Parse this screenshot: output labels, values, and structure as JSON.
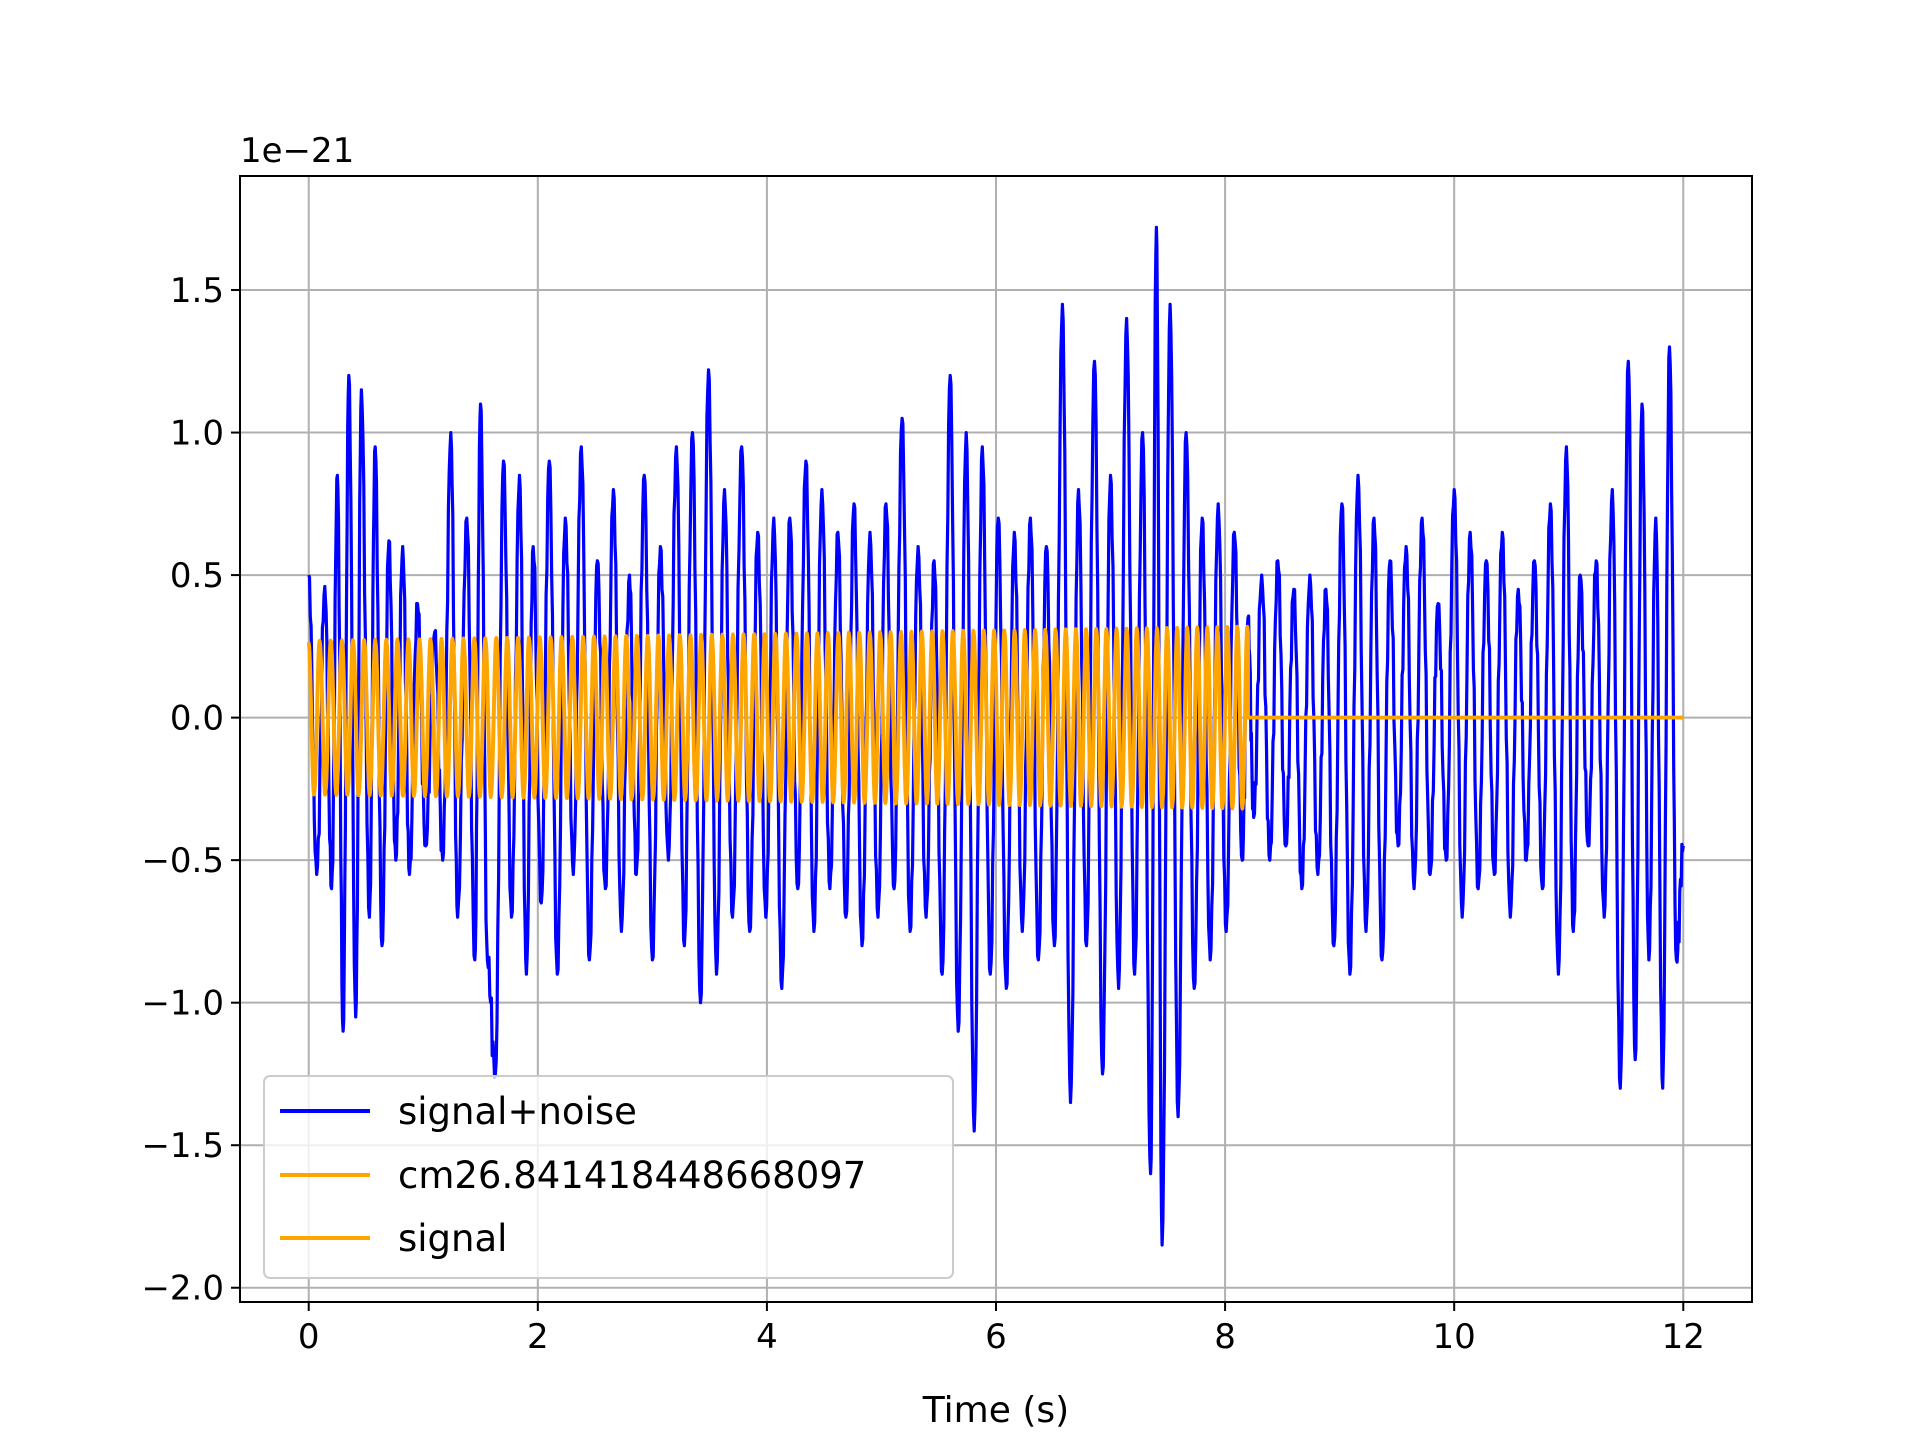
{
  "chart_data": {
    "type": "line",
    "title": "",
    "xlabel": "Time (s)",
    "ylabel": "",
    "offset_text": "1e−21",
    "xlim": [
      -0.6,
      12.6
    ],
    "ylim": [
      -2.05,
      1.9
    ],
    "x_ticks": [
      0,
      2,
      4,
      6,
      8,
      10,
      12
    ],
    "x_tick_labels": [
      "0",
      "2",
      "4",
      "6",
      "8",
      "10",
      "12"
    ],
    "y_ticks": [
      -2.0,
      -1.5,
      -1.0,
      -0.5,
      0.0,
      0.5,
      1.0,
      1.5
    ],
    "y_tick_labels": [
      "−2.0",
      "−1.5",
      "−1.0",
      "−0.5",
      "0.0",
      "0.5",
      "1.0",
      "1.5"
    ],
    "grid": true,
    "legend_position": "lower-left",
    "legend": [
      "signal+noise",
      "cm26.841418448668097",
      "signal"
    ],
    "series": [
      {
        "name": "signal+noise",
        "color": "#0000ff",
        "x_range": [
          0,
          12
        ],
        "peaks": [
          [
            0.0,
            0.5
          ],
          [
            0.07,
            -0.55
          ],
          [
            0.14,
            0.46
          ],
          [
            0.2,
            -0.6
          ],
          [
            0.25,
            0.85
          ],
          [
            0.3,
            -1.1
          ],
          [
            0.35,
            1.2
          ],
          [
            0.41,
            -1.05
          ],
          [
            0.46,
            1.15
          ],
          [
            0.53,
            -0.7
          ],
          [
            0.58,
            0.95
          ],
          [
            0.64,
            -0.8
          ],
          [
            0.7,
            0.62
          ],
          [
            0.76,
            -0.5
          ],
          [
            0.82,
            0.6
          ],
          [
            0.88,
            -0.55
          ],
          [
            0.95,
            0.4
          ],
          [
            1.02,
            -0.45
          ],
          [
            1.1,
            0.3
          ],
          [
            1.17,
            -0.5
          ],
          [
            1.24,
            1.0
          ],
          [
            1.3,
            -0.7
          ],
          [
            1.38,
            0.7
          ],
          [
            1.45,
            -0.85
          ],
          [
            1.5,
            1.1
          ],
          [
            1.56,
            -0.85
          ],
          [
            1.63,
            -1.25
          ],
          [
            1.7,
            0.9
          ],
          [
            1.77,
            -0.7
          ],
          [
            1.84,
            0.85
          ],
          [
            1.9,
            -0.9
          ],
          [
            1.96,
            0.6
          ],
          [
            2.03,
            -0.65
          ],
          [
            2.1,
            0.9
          ],
          [
            2.17,
            -0.9
          ],
          [
            2.24,
            0.7
          ],
          [
            2.31,
            -0.55
          ],
          [
            2.38,
            0.95
          ],
          [
            2.45,
            -0.85
          ],
          [
            2.52,
            0.55
          ],
          [
            2.59,
            -0.6
          ],
          [
            2.66,
            0.8
          ],
          [
            2.73,
            -0.75
          ],
          [
            2.8,
            0.5
          ],
          [
            2.86,
            -0.55
          ],
          [
            2.93,
            0.85
          ],
          [
            3.0,
            -0.85
          ],
          [
            3.07,
            0.6
          ],
          [
            3.14,
            -0.5
          ],
          [
            3.21,
            0.95
          ],
          [
            3.28,
            -0.8
          ],
          [
            3.35,
            1.0
          ],
          [
            3.42,
            -1.0
          ],
          [
            3.49,
            1.22
          ],
          [
            3.56,
            -0.9
          ],
          [
            3.63,
            0.8
          ],
          [
            3.7,
            -0.7
          ],
          [
            3.78,
            0.95
          ],
          [
            3.85,
            -0.75
          ],
          [
            3.92,
            0.65
          ],
          [
            3.99,
            -0.7
          ],
          [
            4.06,
            0.7
          ],
          [
            4.13,
            -0.95
          ],
          [
            4.2,
            0.7
          ],
          [
            4.27,
            -0.6
          ],
          [
            4.34,
            0.9
          ],
          [
            4.41,
            -0.75
          ],
          [
            4.48,
            0.8
          ],
          [
            4.55,
            -0.6
          ],
          [
            4.62,
            0.65
          ],
          [
            4.69,
            -0.7
          ],
          [
            4.76,
            0.75
          ],
          [
            4.83,
            -0.8
          ],
          [
            4.9,
            0.65
          ],
          [
            4.97,
            -0.7
          ],
          [
            5.04,
            0.75
          ],
          [
            5.11,
            -0.6
          ],
          [
            5.18,
            1.05
          ],
          [
            5.25,
            -0.75
          ],
          [
            5.32,
            0.6
          ],
          [
            5.39,
            -0.7
          ],
          [
            5.46,
            0.55
          ],
          [
            5.53,
            -0.9
          ],
          [
            5.6,
            1.2
          ],
          [
            5.67,
            -1.1
          ],
          [
            5.74,
            1.0
          ],
          [
            5.81,
            -1.45
          ],
          [
            5.88,
            0.95
          ],
          [
            5.95,
            -0.9
          ],
          [
            6.02,
            0.7
          ],
          [
            6.09,
            -0.95
          ],
          [
            6.16,
            0.65
          ],
          [
            6.23,
            -0.75
          ],
          [
            6.3,
            0.7
          ],
          [
            6.37,
            -0.85
          ],
          [
            6.44,
            0.6
          ],
          [
            6.51,
            -0.8
          ],
          [
            6.58,
            1.45
          ],
          [
            6.65,
            -1.35
          ],
          [
            6.72,
            0.8
          ],
          [
            6.79,
            -0.8
          ],
          [
            6.86,
            1.25
          ],
          [
            6.93,
            -1.25
          ],
          [
            7.0,
            0.85
          ],
          [
            7.07,
            -0.95
          ],
          [
            7.14,
            1.4
          ],
          [
            7.21,
            -0.9
          ],
          [
            7.28,
            1.0
          ],
          [
            7.35,
            -1.6
          ],
          [
            7.4,
            1.72
          ],
          [
            7.45,
            -1.85
          ],
          [
            7.52,
            1.45
          ],
          [
            7.59,
            -1.4
          ],
          [
            7.66,
            1.0
          ],
          [
            7.73,
            -0.95
          ],
          [
            7.8,
            0.7
          ],
          [
            7.87,
            -0.85
          ],
          [
            7.94,
            0.75
          ],
          [
            8.01,
            -0.75
          ],
          [
            8.08,
            0.65
          ],
          [
            8.15,
            -0.5
          ],
          [
            8.2,
            0.35
          ],
          [
            8.25,
            -0.35
          ],
          [
            8.32,
            0.5
          ],
          [
            8.39,
            -0.5
          ],
          [
            8.46,
            0.55
          ],
          [
            8.53,
            -0.45
          ],
          [
            8.6,
            0.45
          ],
          [
            8.67,
            -0.6
          ],
          [
            8.74,
            0.5
          ],
          [
            8.81,
            -0.55
          ],
          [
            8.88,
            0.45
          ],
          [
            8.95,
            -0.8
          ],
          [
            9.02,
            0.75
          ],
          [
            9.09,
            -0.9
          ],
          [
            9.16,
            0.85
          ],
          [
            9.23,
            -0.75
          ],
          [
            9.3,
            0.7
          ],
          [
            9.37,
            -0.85
          ],
          [
            9.44,
            0.55
          ],
          [
            9.51,
            -0.45
          ],
          [
            9.58,
            0.6
          ],
          [
            9.65,
            -0.6
          ],
          [
            9.72,
            0.7
          ],
          [
            9.79,
            -0.55
          ],
          [
            9.86,
            0.4
          ],
          [
            9.93,
            -0.5
          ],
          [
            10.0,
            0.8
          ],
          [
            10.07,
            -0.7
          ],
          [
            10.14,
            0.65
          ],
          [
            10.21,
            -0.6
          ],
          [
            10.28,
            0.55
          ],
          [
            10.35,
            -0.55
          ],
          [
            10.42,
            0.65
          ],
          [
            10.49,
            -0.7
          ],
          [
            10.56,
            0.45
          ],
          [
            10.63,
            -0.5
          ],
          [
            10.7,
            0.55
          ],
          [
            10.77,
            -0.6
          ],
          [
            10.84,
            0.75
          ],
          [
            10.91,
            -0.9
          ],
          [
            10.98,
            0.95
          ],
          [
            11.04,
            -0.75
          ],
          [
            11.1,
            0.5
          ],
          [
            11.17,
            -0.45
          ],
          [
            11.24,
            0.55
          ],
          [
            11.31,
            -0.7
          ],
          [
            11.38,
            0.8
          ],
          [
            11.45,
            -1.3
          ],
          [
            11.52,
            1.25
          ],
          [
            11.58,
            -1.2
          ],
          [
            11.64,
            1.1
          ],
          [
            11.7,
            -0.85
          ],
          [
            11.76,
            0.7
          ],
          [
            11.82,
            -1.3
          ],
          [
            11.88,
            1.3
          ],
          [
            11.94,
            -0.85
          ],
          [
            12.0,
            -0.45
          ]
        ]
      },
      {
        "name": "cm26.841418448668097",
        "color": "#ffa500",
        "t_end": 8.2,
        "amplitude_start": 0.27,
        "amplitude_end": 0.32,
        "cycles": 84
      },
      {
        "name": "signal",
        "color": "#ffa500",
        "t_end": 8.2,
        "amplitude_start": 0.26,
        "amplitude_end": 0.31,
        "cycles": 84
      }
    ]
  }
}
